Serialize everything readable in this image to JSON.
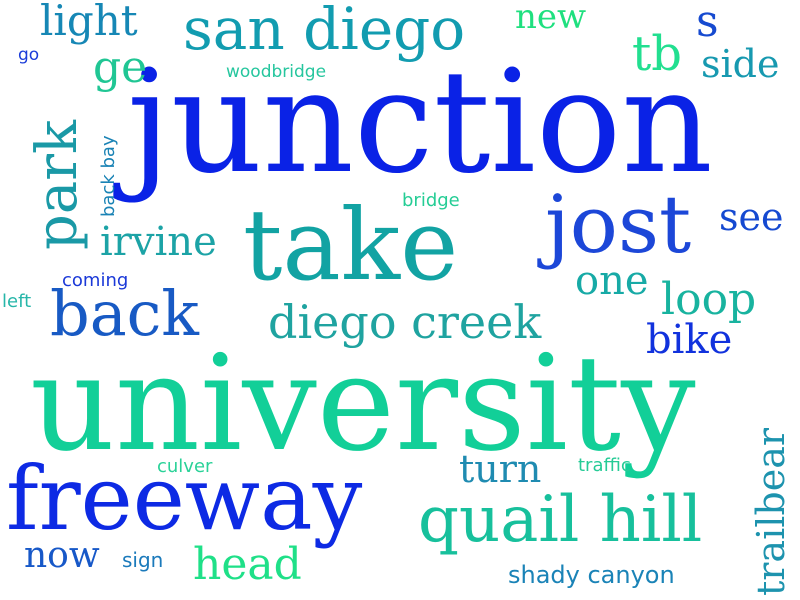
{
  "word_cloud": {
    "words": [
      {
        "text": "junction",
        "color": "#0a22e6"
      },
      {
        "text": "university",
        "color": "#12cf98"
      },
      {
        "text": "take",
        "color": "#12a3a3"
      },
      {
        "text": "jost",
        "color": "#1c47d8"
      },
      {
        "text": "freeway",
        "color": "#0d2ae4"
      },
      {
        "text": "quail hill",
        "color": "#17c09c"
      },
      {
        "text": "san diego",
        "color": "#129cb0"
      },
      {
        "text": "park",
        "color": "#1a99a6"
      },
      {
        "text": "back",
        "color": "#185ac4"
      },
      {
        "text": "diego creek",
        "color": "#1fa3a0"
      },
      {
        "text": "light",
        "color": "#1687b5"
      },
      {
        "text": "irvine",
        "color": "#1ca3a6"
      },
      {
        "text": "loop",
        "color": "#18b39f"
      },
      {
        "text": "one",
        "color": "#17aaa6"
      },
      {
        "text": "bike",
        "color": "#1132dd"
      },
      {
        "text": "see",
        "color": "#1549d1"
      },
      {
        "text": "s",
        "color": "#164ad0"
      },
      {
        "text": "side",
        "color": "#1799b0"
      },
      {
        "text": "tb",
        "color": "#22df90"
      },
      {
        "text": "new",
        "color": "#1fe07f"
      },
      {
        "text": "ge",
        "color": "#20c694"
      },
      {
        "text": "woodbridge",
        "color": "#26c69e"
      },
      {
        "text": "go",
        "color": "#1b3cd9"
      },
      {
        "text": "back bay",
        "color": "#1a83b5"
      },
      {
        "text": "bridge",
        "color": "#25cd95"
      },
      {
        "text": "coming",
        "color": "#1b39d8"
      },
      {
        "text": "left",
        "color": "#27b6a9"
      },
      {
        "text": "turn",
        "color": "#1f8bb1"
      },
      {
        "text": "culver",
        "color": "#2ad298"
      },
      {
        "text": "traffic",
        "color": "#26cb96"
      },
      {
        "text": "trailbear",
        "color": "#1d93ae"
      },
      {
        "text": "now",
        "color": "#1758c8"
      },
      {
        "text": "sign",
        "color": "#1b7abb"
      },
      {
        "text": "head",
        "color": "#1fe088"
      },
      {
        "text": "shady canyon",
        "color": "#1a83b7"
      }
    ]
  }
}
